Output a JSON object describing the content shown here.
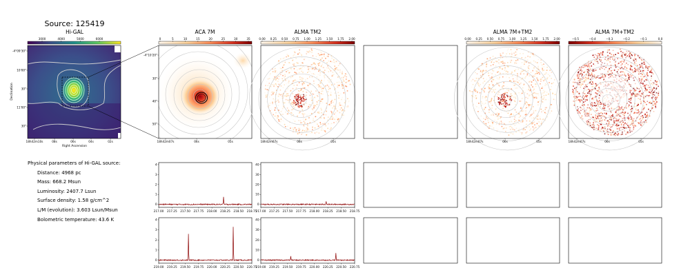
{
  "figure": {
    "title": "Source: 125419"
  },
  "panels": {
    "higal": {
      "title": "Hi-GAL",
      "colorbar_ticks": [
        "3000",
        "4000",
        "5000",
        "6000"
      ],
      "y_ticks": [
        "-4°09'30\"",
        "10'00\"",
        "30\"",
        "11'00\"",
        "30\""
      ],
      "x_ticks": [
        "18h42m10s",
        "08s",
        "06s",
        "04s",
        "02s"
      ],
      "xlabel": "Right Ascension",
      "ylabel": "Declination"
    },
    "aca": {
      "title": "ACA 7M",
      "colorbar_ticks": [
        "0",
        "5",
        "10",
        "15",
        "20",
        "25",
        "30",
        "35"
      ],
      "y_ticks": [
        "-4°10'20\"",
        "30\"",
        "40\"",
        "50\""
      ],
      "x_ticks": [
        "18h42m07s",
        "06s",
        "05s"
      ]
    },
    "tm2": {
      "title": "ALMA TM2",
      "colorbar_ticks": [
        "0.00",
        "0.25",
        "0.50",
        "0.75",
        "1.00",
        "1.25",
        "1.50",
        "1.75",
        "2.00"
      ],
      "x_ticks": [
        "18h42m07s",
        "06s",
        "05s"
      ]
    },
    "combo": {
      "title": "ALMA 7M+TM2",
      "colorbar_ticks": [
        "0.00",
        "0.25",
        "0.50",
        "0.75",
        "1.00",
        "1.25",
        "1.50",
        "1.75",
        "2.00"
      ],
      "x_ticks": [
        "18h42m07s",
        "06s",
        "05s"
      ]
    },
    "combo2": {
      "title": "ALMA 7M+TM2",
      "colorbar_ticks": [
        "−0.5",
        "−0.4",
        "−0.3",
        "−0.2",
        "−0.1",
        "0.0"
      ],
      "x_ticks": [
        "18h42m07s",
        "06s",
        "05s"
      ]
    }
  },
  "physical": {
    "heading": "Physical parameters of Hi-GAL source:",
    "lines": [
      "Distance: 4968 pc",
      "Mass: 668.2 Msun",
      "Luminosity: 2407.7 Lsun",
      "Surface density: 1.58 g/cm^2",
      "L/M (evolution): 3.603 Lsun/Msun",
      "Bolometric temperature: 43.6 K"
    ]
  },
  "colors": {
    "spectrum": "#8b0000",
    "contour": "#c8c8c8"
  },
  "chart_data": [
    {
      "type": "line",
      "panel": "ACA 7M spectrum (row 1)",
      "x_range": [
        217.0,
        218.75
      ],
      "x_ticks": [
        "217.00",
        "217.25",
        "217.50",
        "217.75",
        "218.00",
        "218.25",
        "218.50",
        "218.75"
      ],
      "ylim": [
        -0.3,
        4.2
      ],
      "y_ticks": [
        "0",
        "1",
        "2",
        "3",
        "4"
      ],
      "baseline": 0,
      "peaks": [
        {
          "x": 218.22,
          "y": 0.75
        }
      ]
    },
    {
      "type": "line",
      "panel": "ALMA TM2 spectrum (row 1)",
      "x_range": [
        217.0,
        218.75
      ],
      "x_ticks": [
        "217.00",
        "217.25",
        "217.50",
        "217.75",
        "218.00",
        "218.25",
        "218.50",
        "218.75"
      ],
      "ylim": [
        -3,
        42
      ],
      "y_ticks": [
        "0",
        "10",
        "20",
        "30",
        "40"
      ],
      "baseline": 0,
      "peaks": [
        {
          "x": 218.22,
          "y": 3
        }
      ]
    },
    {
      "type": "line",
      "panel": "ACA 7M spectrum (row 2)",
      "x_range": [
        219.0,
        220.75
      ],
      "x_ticks": [
        "219.00",
        "219.25",
        "219.50",
        "219.75",
        "220.00",
        "220.25",
        "220.50",
        "220.75"
      ],
      "ylim": [
        -0.3,
        4.2
      ],
      "y_ticks": [
        "0",
        "1",
        "2",
        "3",
        "4"
      ],
      "baseline": 0,
      "peaks": [
        {
          "x": 219.56,
          "y": 2.6
        },
        {
          "x": 220.4,
          "y": 3.3
        }
      ]
    },
    {
      "type": "line",
      "panel": "ALMA TM2 spectrum (row 2)",
      "x_range": [
        219.0,
        220.75
      ],
      "x_ticks": [
        "219.00",
        "219.25",
        "219.50",
        "219.75",
        "220.00",
        "220.25",
        "220.50",
        "220.75"
      ],
      "ylim": [
        -3,
        42
      ],
      "y_ticks": [
        "0",
        "10",
        "20",
        "30",
        "40"
      ],
      "baseline": 0,
      "peaks": [
        {
          "x": 219.56,
          "y": 4
        },
        {
          "x": 220.4,
          "y": 7
        }
      ]
    }
  ]
}
